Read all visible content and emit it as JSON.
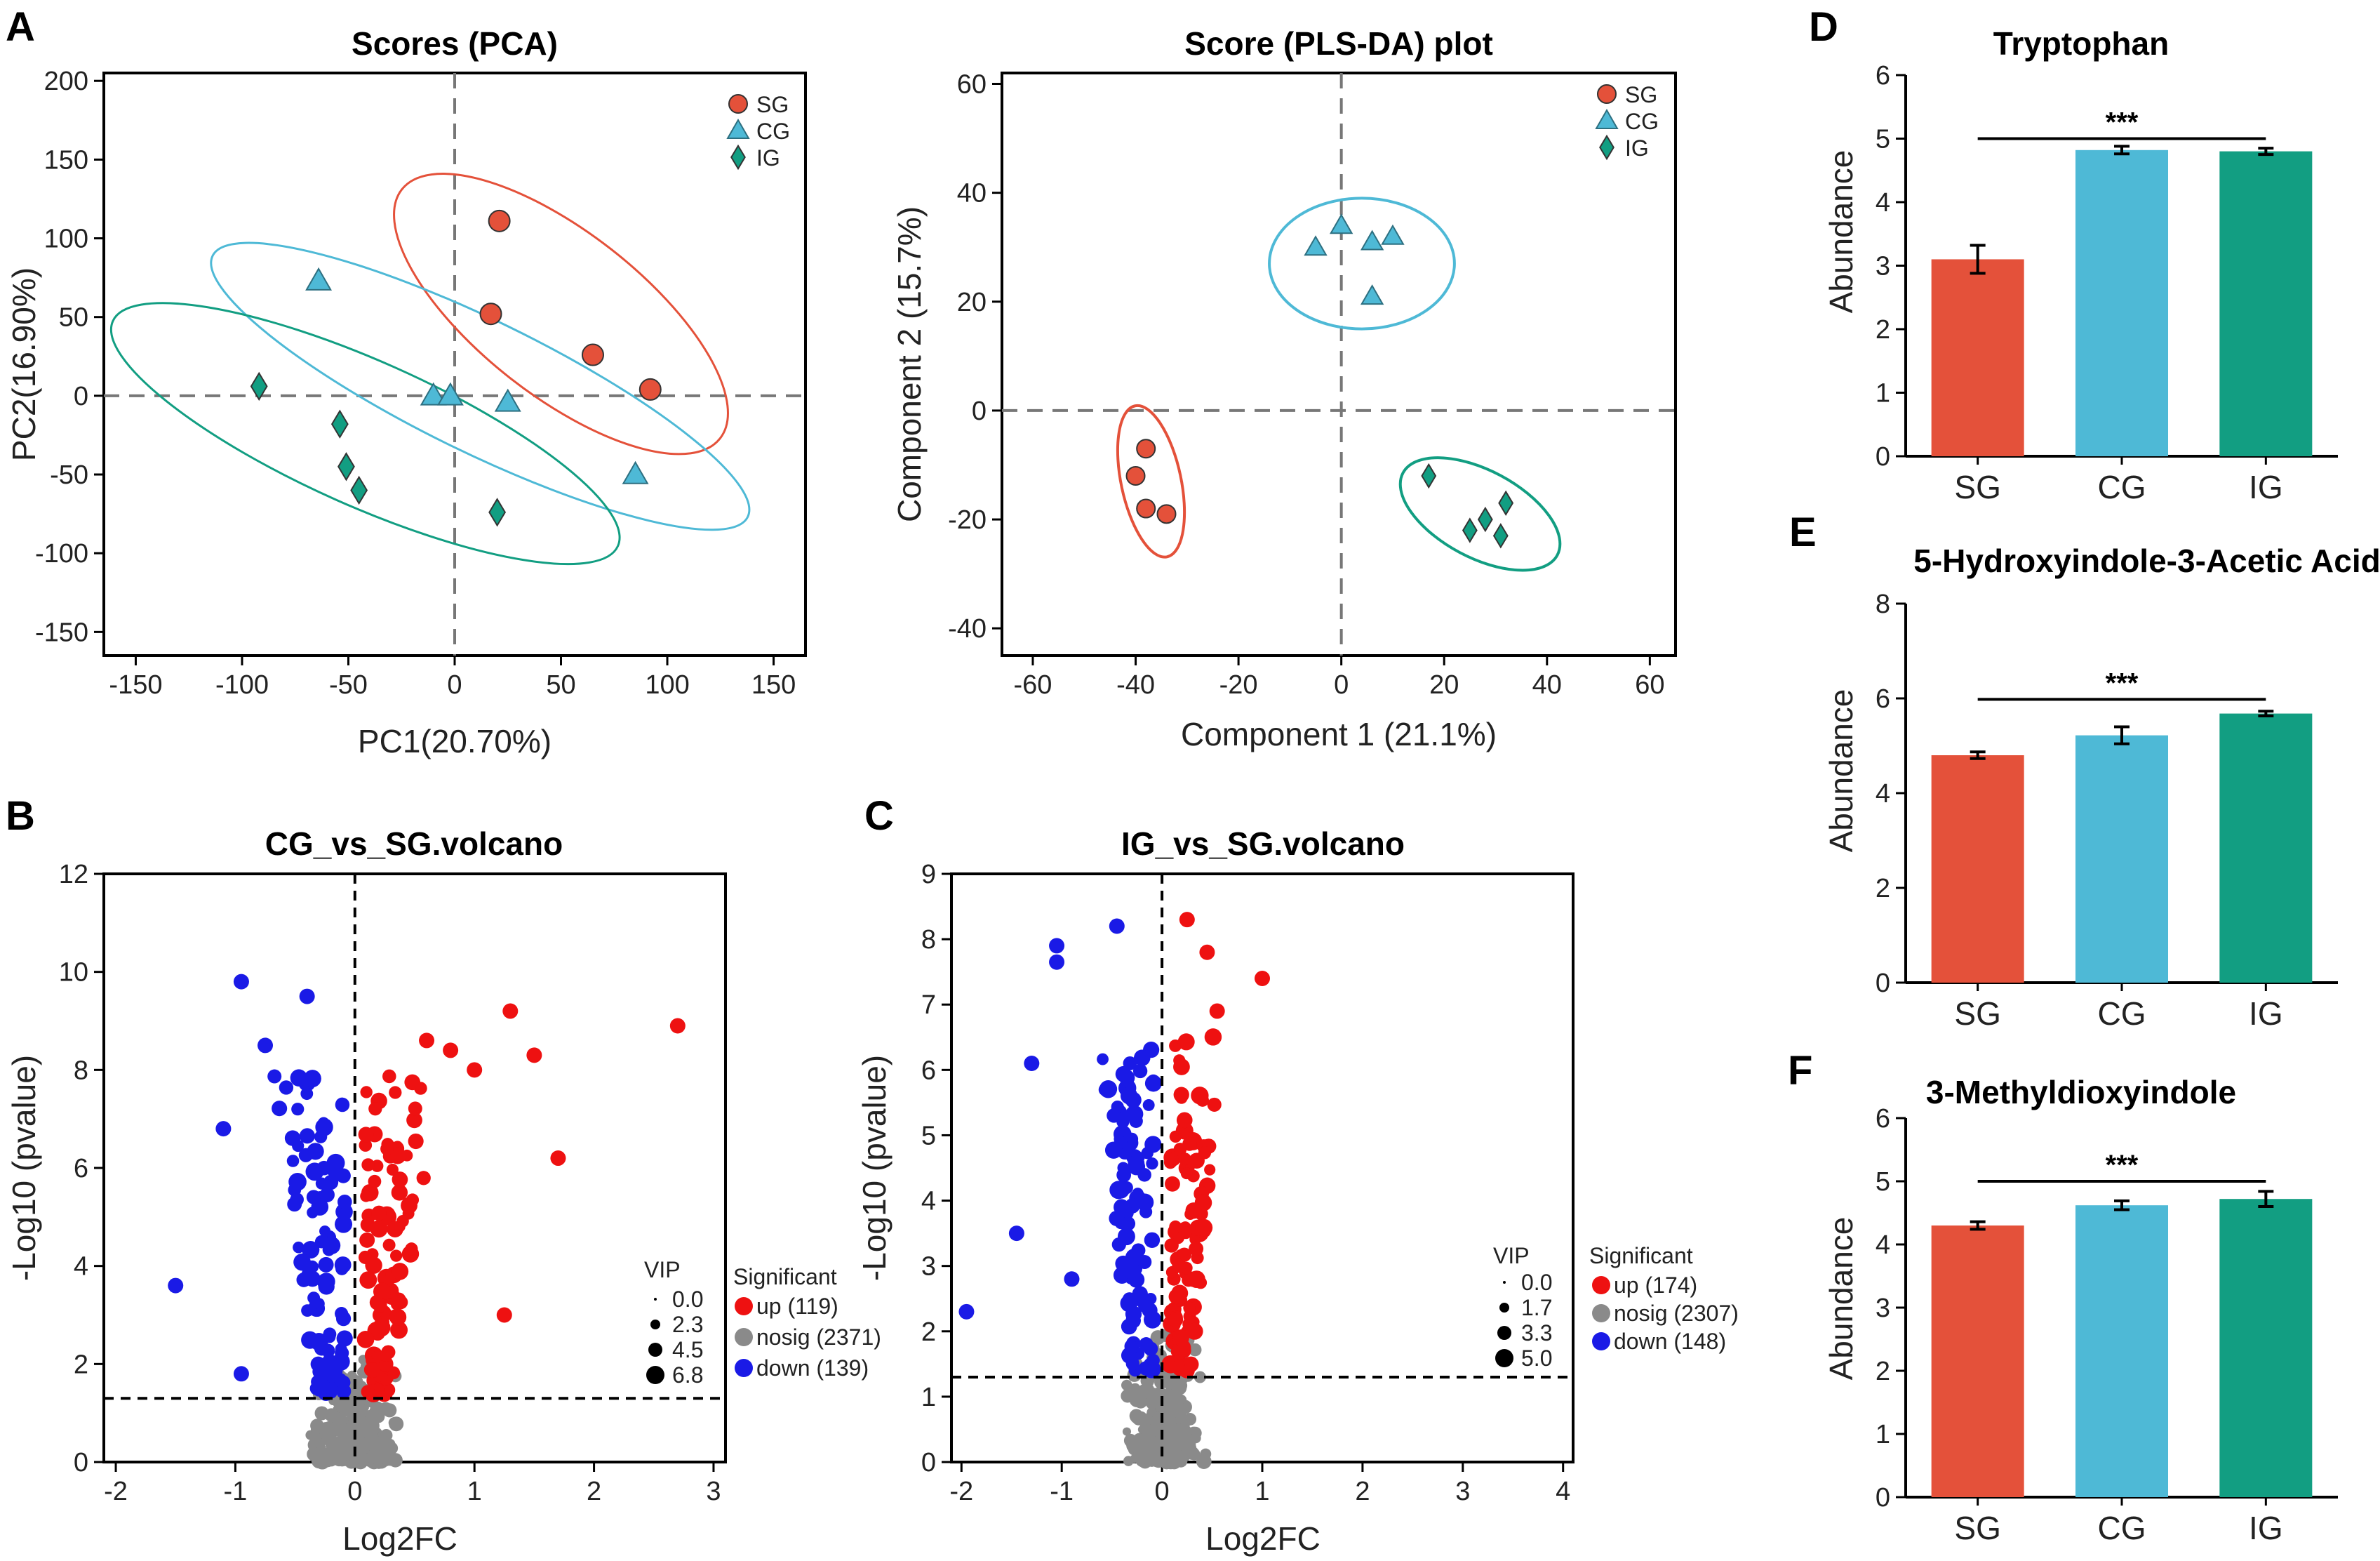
{
  "panel_labels": [
    "A",
    "B",
    "C",
    "D",
    "E",
    "F"
  ],
  "colors": {
    "SG": "#e4513a",
    "CG": "#4eb9d6",
    "IG": "#129e82",
    "up": "#ee1111",
    "down": "#1a1ae6",
    "nosig": "#8a8a8a"
  },
  "chart_data": [
    {
      "id": "pca",
      "type": "scatter",
      "title": "Scores (PCA)",
      "xlabel": "PC1(20.70%)",
      "ylabel": "PC2(16.90%)",
      "xlim": [
        -165,
        165
      ],
      "ylim": [
        -165,
        205
      ],
      "xticks": [
        -150,
        -100,
        -50,
        0,
        50,
        100,
        150
      ],
      "xtick_labels": [
        "-150",
        "-100",
        "-50",
        "0",
        "50",
        "100",
        "150"
      ],
      "yticks": [
        -150,
        -100,
        -50,
        0,
        50,
        100,
        150,
        200
      ],
      "ytick_labels": [
        "-150",
        "-100",
        "-50",
        "0",
        "50",
        "100",
        "150",
        "200"
      ],
      "legend": [
        "SG",
        "CG",
        "IG"
      ],
      "series": [
        {
          "name": "SG",
          "marker": "circle",
          "points": [
            [
              21,
              111
            ],
            [
              17,
              52
            ],
            [
              65,
              26
            ],
            [
              92,
              4
            ]
          ]
        },
        {
          "name": "CG",
          "marker": "triangle",
          "points": [
            [
              -64,
              73
            ],
            [
              -10,
              0
            ],
            [
              -2,
              0
            ],
            [
              25,
              -4
            ],
            [
              85,
              -50
            ]
          ]
        },
        {
          "name": "IG",
          "marker": "diamond",
          "points": [
            [
              -92,
              6
            ],
            [
              -54,
              -18
            ],
            [
              -51,
              -45
            ],
            [
              -45,
              -60
            ],
            [
              20,
              -74
            ]
          ]
        }
      ]
    },
    {
      "id": "plsda",
      "type": "scatter",
      "title": "Score (PLS-DA) plot",
      "xlabel": "Component 1 (21.1%)",
      "ylabel": "Component 2 (15.7%)",
      "xlim": [
        -66,
        65
      ],
      "ylim": [
        -45,
        62
      ],
      "xticks": [
        -60,
        -40,
        -20,
        0,
        20,
        40,
        60
      ],
      "xtick_labels": [
        "-60",
        "-40",
        "-20",
        "0",
        "20",
        "40",
        "60"
      ],
      "yticks": [
        -40,
        -20,
        0,
        20,
        40,
        60
      ],
      "ytick_labels": [
        "-40",
        "-20",
        "0",
        "20",
        "40",
        "60"
      ],
      "legend": [
        "SG",
        "CG",
        "IG"
      ],
      "series": [
        {
          "name": "SG",
          "marker": "circle",
          "points": [
            [
              -38,
              -7
            ],
            [
              -40,
              -12
            ],
            [
              -38,
              -18
            ],
            [
              -34,
              -19
            ]
          ]
        },
        {
          "name": "CG",
          "marker": "triangle",
          "points": [
            [
              -5,
              30
            ],
            [
              0,
              34
            ],
            [
              6,
              31
            ],
            [
              10,
              32
            ],
            [
              6,
              21
            ]
          ]
        },
        {
          "name": "IG",
          "marker": "diamond",
          "points": [
            [
              17,
              -12
            ],
            [
              25,
              -22
            ],
            [
              28,
              -20
            ],
            [
              31,
              -23
            ],
            [
              32,
              -17
            ]
          ]
        }
      ]
    },
    {
      "id": "volcano_cg",
      "type": "scatter",
      "title": "CG_vs_SG.volcano",
      "xlabel": "Log2FC",
      "ylabel": "-Log10 (pvalue)",
      "xlim": [
        -2.1,
        3.1
      ],
      "ylim": [
        0,
        12
      ],
      "xticks": [
        -2,
        -1,
        0,
        1,
        2,
        3
      ],
      "xtick_labels": [
        "-2",
        "-1",
        "0",
        "1",
        "2",
        "3"
      ],
      "yticks": [
        0,
        2,
        4,
        6,
        8,
        10,
        12
      ],
      "ytick_labels": [
        "0",
        "2",
        "4",
        "6",
        "8",
        "10",
        "12"
      ],
      "threshold_y": 1.3,
      "vip_title": "VIP",
      "vip_labels": [
        "0.0",
        "2.3",
        "4.5",
        "6.8"
      ],
      "legend_title": "Significant",
      "legend_labels": [
        "up (119)",
        "nosig (2371)",
        "down (139)"
      ],
      "highlight_up": [
        [
          2.7,
          8.9
        ],
        [
          1.3,
          9.2
        ],
        [
          1.5,
          8.3
        ],
        [
          1.7,
          6.2
        ],
        [
          1.25,
          3.0
        ],
        [
          1.0,
          8.0
        ],
        [
          0.8,
          8.4
        ],
        [
          0.6,
          8.6
        ]
      ],
      "highlight_down": [
        [
          -0.95,
          9.8
        ],
        [
          -0.75,
          8.5
        ],
        [
          -1.1,
          6.8
        ],
        [
          -1.5,
          3.6
        ],
        [
          -0.95,
          1.8
        ],
        [
          -0.4,
          9.5
        ]
      ]
    },
    {
      "id": "volcano_ig",
      "type": "scatter",
      "title": "IG_vs_SG.volcano",
      "xlabel": "Log2FC",
      "ylabel": "-Log10 (pvalue)",
      "xlim": [
        -2.1,
        4.1
      ],
      "ylim": [
        0,
        9
      ],
      "xticks": [
        -2,
        -1,
        0,
        1,
        2,
        3,
        4
      ],
      "xtick_labels": [
        "-2",
        "-1",
        "0",
        "1",
        "2",
        "3",
        "4"
      ],
      "yticks": [
        0,
        1,
        2,
        3,
        4,
        5,
        6,
        7,
        8,
        9
      ],
      "ytick_labels": [
        "0",
        "1",
        "2",
        "3",
        "4",
        "5",
        "6",
        "7",
        "8",
        "9"
      ],
      "threshold_y": 1.3,
      "vip_title": "VIP",
      "vip_labels": [
        "0.0",
        "1.7",
        "3.3",
        "5.0"
      ],
      "legend_title": "Significant",
      "legend_labels": [
        "up (174)",
        "nosig (2307)",
        "down (148)"
      ],
      "highlight_up": [
        [
          1.0,
          7.4
        ],
        [
          0.25,
          8.3
        ],
        [
          0.45,
          7.8
        ],
        [
          0.55,
          6.9
        ]
      ],
      "highlight_down": [
        [
          -1.95,
          2.3
        ],
        [
          -1.45,
          3.5
        ],
        [
          -1.3,
          6.1
        ],
        [
          -1.05,
          7.9
        ],
        [
          -1.05,
          7.65
        ],
        [
          -0.45,
          8.2
        ],
        [
          -0.9,
          2.8
        ]
      ]
    },
    {
      "id": "bar_trp",
      "type": "bar",
      "title": "Tryptophan",
      "ylabel": "Abundance",
      "categories": [
        "SG",
        "CG",
        "IG"
      ],
      "values": [
        3.1,
        4.82,
        4.8
      ],
      "errors": [
        0.22,
        0.06,
        0.05
      ],
      "ylim": [
        0,
        6
      ],
      "yticks": [
        0,
        1,
        2,
        3,
        4,
        5,
        6
      ],
      "ytick_labels": [
        "0",
        "1",
        "2",
        "3",
        "4",
        "5",
        "6"
      ],
      "significance": "***",
      "sig_y": 5.0
    },
    {
      "id": "bar_5hiaa",
      "type": "bar",
      "title": "5-Hydroxyindole-3-Acetic Acid",
      "ylabel": "Abundance",
      "categories": [
        "SG",
        "CG",
        "IG"
      ],
      "values": [
        4.8,
        5.22,
        5.68
      ],
      "errors": [
        0.07,
        0.18,
        0.05
      ],
      "ylim": [
        0,
        8
      ],
      "yticks": [
        0,
        2,
        4,
        6,
        8
      ],
      "ytick_labels": [
        "0",
        "2",
        "4",
        "6",
        "8"
      ],
      "significance": "***",
      "sig_y": 5.98
    },
    {
      "id": "bar_3mdi",
      "type": "bar",
      "title": "3-Methyldioxyindole",
      "ylabel": "Abundance",
      "categories": [
        "SG",
        "CG",
        "IG"
      ],
      "values": [
        4.3,
        4.62,
        4.72
      ],
      "errors": [
        0.06,
        0.07,
        0.12
      ],
      "ylim": [
        0,
        6
      ],
      "yticks": [
        0,
        1,
        2,
        3,
        4,
        5,
        6
      ],
      "ytick_labels": [
        "0",
        "1",
        "2",
        "3",
        "4",
        "5",
        "6"
      ],
      "significance": "***",
      "sig_y": 5.0
    }
  ]
}
